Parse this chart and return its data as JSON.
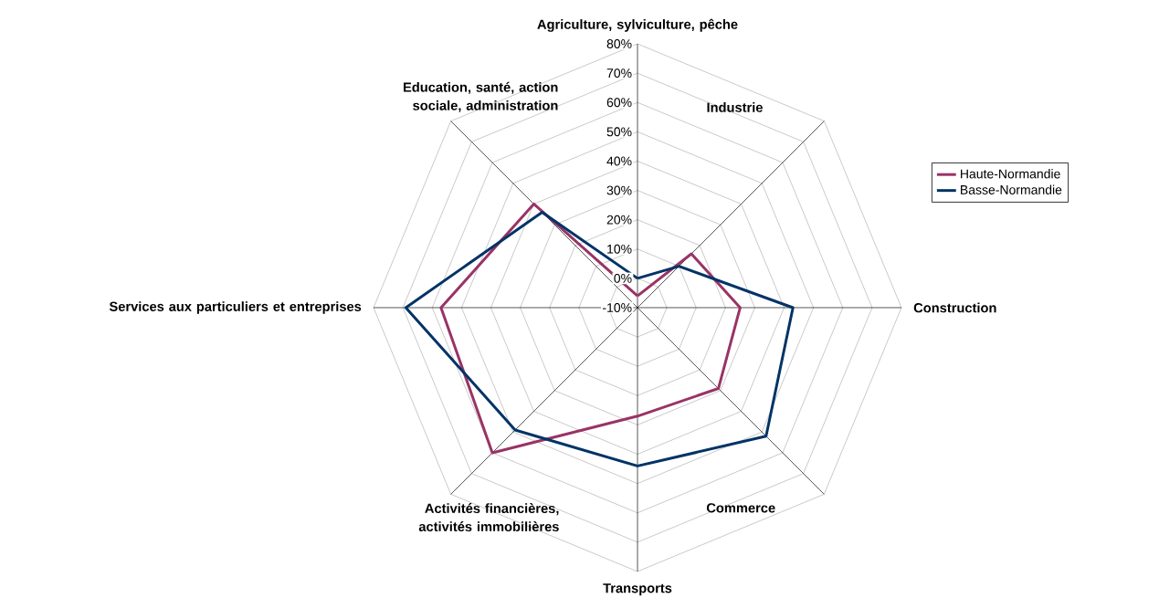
{
  "chart_data": {
    "type": "radar",
    "categories": [
      "Agriculture, sylviculture, pêche",
      "Industrie",
      "Construction",
      "Commerce",
      "Transports",
      "Activités financières, activités immobilières",
      "Services aux particuliers et entreprises",
      "Education, santé, action sociale, administration"
    ],
    "series": [
      {
        "name": "Haute-Normandie",
        "color": "#993366",
        "values": [
          -6,
          16,
          25,
          29,
          27,
          60,
          57,
          40
        ]
      },
      {
        "name": "Basse-Normandie",
        "color": "#003366",
        "values": [
          0,
          10,
          43,
          52,
          44,
          49,
          69,
          36
        ]
      }
    ],
    "ylim": [
      -10,
      80
    ],
    "yticks": [
      {
        "value": -10,
        "label": "-10%"
      },
      {
        "value": 0,
        "label": "0%"
      },
      {
        "value": 10,
        "label": "10%"
      },
      {
        "value": 20,
        "label": "20%"
      },
      {
        "value": 30,
        "label": "30%"
      },
      {
        "value": 40,
        "label": "40%"
      },
      {
        "value": 50,
        "label": "50%"
      },
      {
        "value": 60,
        "label": "60%"
      },
      {
        "value": 70,
        "label": "70%"
      },
      {
        "value": 80,
        "label": "80%"
      }
    ],
    "grid": true,
    "legend": "right"
  }
}
